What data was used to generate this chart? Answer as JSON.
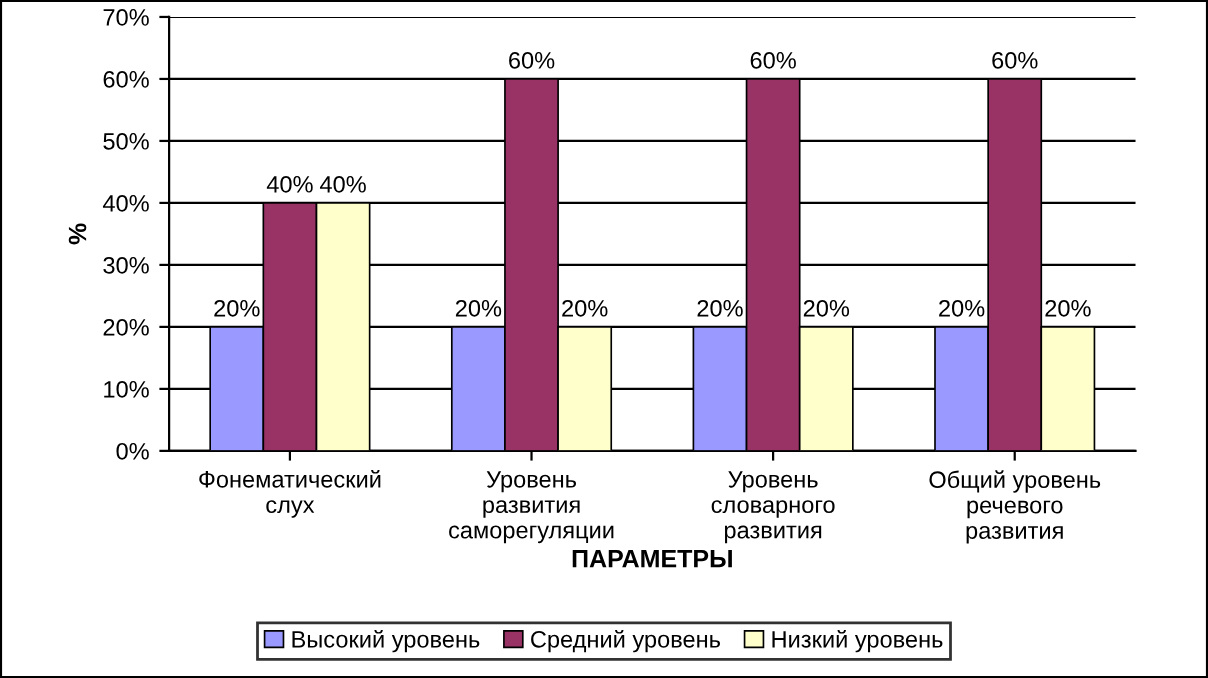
{
  "chart_data": {
    "type": "bar",
    "xlabel": "ПАРАМЕТРЫ",
    "ylabel": "%",
    "categories": [
      "Фонематический\nслух",
      "Уровень\nразвития\nсаморегуляции",
      "Уровень\nсловарного\nразвития",
      "Общий уровень\nречевого\nразвития"
    ],
    "series": [
      {
        "name": "Высокий уровень",
        "color": "#9999ff",
        "values": [
          20,
          20,
          20,
          20
        ],
        "value_labels": [
          "20%",
          "20%",
          "20%",
          "20%"
        ]
      },
      {
        "name": "Средний уровень",
        "color": "#993366",
        "values": [
          40,
          60,
          60,
          60
        ],
        "value_labels": [
          "40%",
          "60%",
          "60%",
          "60%"
        ]
      },
      {
        "name": "Низкий уровень",
        "color": "#ffffcc",
        "values": [
          40,
          20,
          20,
          20
        ],
        "value_labels": [
          "40%",
          "20%",
          "20%",
          "20%"
        ]
      }
    ],
    "ylim": [
      0,
      70
    ],
    "yticks": [
      {
        "value": 0,
        "label": "0%"
      },
      {
        "value": 10,
        "label": "10%"
      },
      {
        "value": 20,
        "label": "20%"
      },
      {
        "value": 30,
        "label": "30%"
      },
      {
        "value": 40,
        "label": "40%"
      },
      {
        "value": 50,
        "label": "50%"
      },
      {
        "value": 60,
        "label": "60%"
      },
      {
        "value": 70,
        "label": "70%"
      }
    ],
    "grid": "y",
    "legend": "bottom"
  }
}
